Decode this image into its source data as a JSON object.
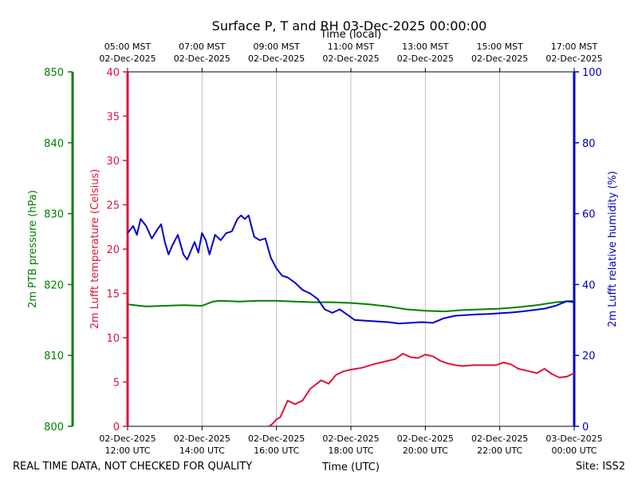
{
  "chart_data": {
    "type": "line",
    "title": "Surface P, T and RH 03-Dec-2025 00:00:00",
    "top_axis_title": "Time (local)",
    "xlabel": "Time (UTC)",
    "footer_left": "REAL TIME DATA, NOT CHECKED FOR QUALITY",
    "footer_right": "Site: ISS2",
    "x_range_hours": [
      12,
      24
    ],
    "bottom_ticks": [
      {
        "hour": 12,
        "date": "02-Dec-2025",
        "time": "12:00 UTC"
      },
      {
        "hour": 14,
        "date": "02-Dec-2025",
        "time": "14:00 UTC"
      },
      {
        "hour": 16,
        "date": "02-Dec-2025",
        "time": "16:00 UTC"
      },
      {
        "hour": 18,
        "date": "02-Dec-2025",
        "time": "18:00 UTC"
      },
      {
        "hour": 20,
        "date": "02-Dec-2025",
        "time": "20:00 UTC"
      },
      {
        "hour": 22,
        "date": "02-Dec-2025",
        "time": "22:00 UTC"
      },
      {
        "hour": 24,
        "date": "03-Dec-2025",
        "time": "00:00 UTC"
      }
    ],
    "top_ticks": [
      {
        "hour": 12,
        "time": "05:00 MST",
        "date": "02-Dec-2025"
      },
      {
        "hour": 14,
        "time": "07:00 MST",
        "date": "02-Dec-2025"
      },
      {
        "hour": 16,
        "time": "09:00 MST",
        "date": "02-Dec-2025"
      },
      {
        "hour": 18,
        "time": "11:00 MST",
        "date": "02-Dec-2025"
      },
      {
        "hour": 20,
        "time": "13:00 MST",
        "date": "02-Dec-2025"
      },
      {
        "hour": 22,
        "time": "15:00 MST",
        "date": "02-Dec-2025"
      },
      {
        "hour": 24,
        "time": "17:00 MST",
        "date": "02-Dec-2025"
      }
    ],
    "axes": {
      "pressure": {
        "label": "2m PTB pressure (hPa)",
        "ylim": [
          800,
          850
        ],
        "ticks": [
          800,
          810,
          820,
          830,
          840,
          850
        ],
        "color": "#008000"
      },
      "temperature": {
        "label": "2m Lufft temperature (Celsius)",
        "ylim": [
          0,
          40
        ],
        "ticks": [
          0,
          5,
          10,
          15,
          20,
          25,
          30,
          35,
          40
        ],
        "color": "#dc143c"
      },
      "humidity": {
        "label": "2m Lufft relative humidity (%)",
        "ylim": [
          0,
          100
        ],
        "ticks": [
          0,
          20,
          40,
          60,
          80,
          100
        ],
        "color": "#0000cd"
      }
    },
    "series": [
      {
        "name": "2m PTB pressure (hPa)",
        "axis": "pressure",
        "color": "#008000",
        "x": [
          12.0,
          12.5,
          13.0,
          13.5,
          14.0,
          14.3,
          14.5,
          15.0,
          15.5,
          16.0,
          16.5,
          17.0,
          17.5,
          18.0,
          18.5,
          19.0,
          19.5,
          20.0,
          20.5,
          21.0,
          21.5,
          22.0,
          22.5,
          23.0,
          23.5,
          24.0
        ],
        "values": [
          817.2,
          816.9,
          817.0,
          817.1,
          817.0,
          817.6,
          817.7,
          817.6,
          817.7,
          817.7,
          817.6,
          817.5,
          817.5,
          817.4,
          817.2,
          816.9,
          816.5,
          816.3,
          816.2,
          816.4,
          816.5,
          816.6,
          816.8,
          817.1,
          817.5,
          817.7
        ]
      },
      {
        "name": "2m Lufft temperature (Celsius)",
        "axis": "temperature",
        "color": "#dc143c",
        "x": [
          15.8,
          15.9,
          16.0,
          16.1,
          16.3,
          16.5,
          16.7,
          16.9,
          17.2,
          17.4,
          17.6,
          17.8,
          18.0,
          18.3,
          18.6,
          18.9,
          19.2,
          19.4,
          19.6,
          19.8,
          20.0,
          20.2,
          20.4,
          20.6,
          20.8,
          21.0,
          21.3,
          21.6,
          21.9,
          22.1,
          22.3,
          22.5,
          22.8,
          23.0,
          23.2,
          23.4,
          23.6,
          23.8,
          24.0
        ],
        "values": [
          0.0,
          0.3,
          0.8,
          1.0,
          2.9,
          2.5,
          2.9,
          4.2,
          5.2,
          4.8,
          5.8,
          6.2,
          6.4,
          6.6,
          7.0,
          7.3,
          7.6,
          8.2,
          7.8,
          7.7,
          8.1,
          7.9,
          7.4,
          7.1,
          6.9,
          6.8,
          6.9,
          6.9,
          6.9,
          7.2,
          7.0,
          6.5,
          6.2,
          6.0,
          6.5,
          5.9,
          5.5,
          5.6,
          6.0
        ]
      },
      {
        "name": "2m Lufft relative humidity (%)",
        "axis": "humidity",
        "color": "#0000cd",
        "x": [
          12.0,
          12.15,
          12.25,
          12.35,
          12.5,
          12.65,
          12.8,
          12.9,
          13.0,
          13.1,
          13.2,
          13.35,
          13.5,
          13.6,
          13.7,
          13.8,
          13.9,
          14.0,
          14.1,
          14.2,
          14.35,
          14.5,
          14.65,
          14.8,
          14.95,
          15.05,
          15.15,
          15.25,
          15.4,
          15.55,
          15.7,
          15.85,
          16.0,
          16.15,
          16.3,
          16.5,
          16.7,
          16.9,
          17.1,
          17.3,
          17.5,
          17.7,
          17.9,
          18.1,
          18.4,
          18.7,
          19.0,
          19.3,
          19.6,
          19.9,
          20.2,
          20.5,
          20.8,
          21.1,
          21.4,
          21.7,
          22.0,
          22.3,
          22.6,
          22.9,
          23.2,
          23.5,
          23.8,
          24.0
        ],
        "values": [
          54.5,
          56.5,
          54.0,
          58.5,
          56.5,
          53.0,
          55.5,
          57.0,
          52.0,
          48.5,
          51.0,
          54.0,
          48.5,
          47.0,
          49.5,
          52.0,
          49.0,
          54.5,
          52.5,
          48.5,
          54.0,
          52.5,
          54.5,
          55.0,
          58.5,
          59.5,
          58.5,
          59.5,
          53.5,
          52.5,
          53.0,
          47.5,
          44.5,
          42.5,
          42.0,
          40.5,
          38.5,
          37.5,
          36.0,
          33.0,
          32.0,
          33.0,
          31.5,
          30.0,
          29.8,
          29.6,
          29.4,
          29.0,
          29.2,
          29.4,
          29.2,
          30.5,
          31.2,
          31.4,
          31.6,
          31.7,
          31.9,
          32.1,
          32.4,
          32.8,
          33.2,
          34.0,
          35.3,
          35.0
        ]
      }
    ]
  }
}
